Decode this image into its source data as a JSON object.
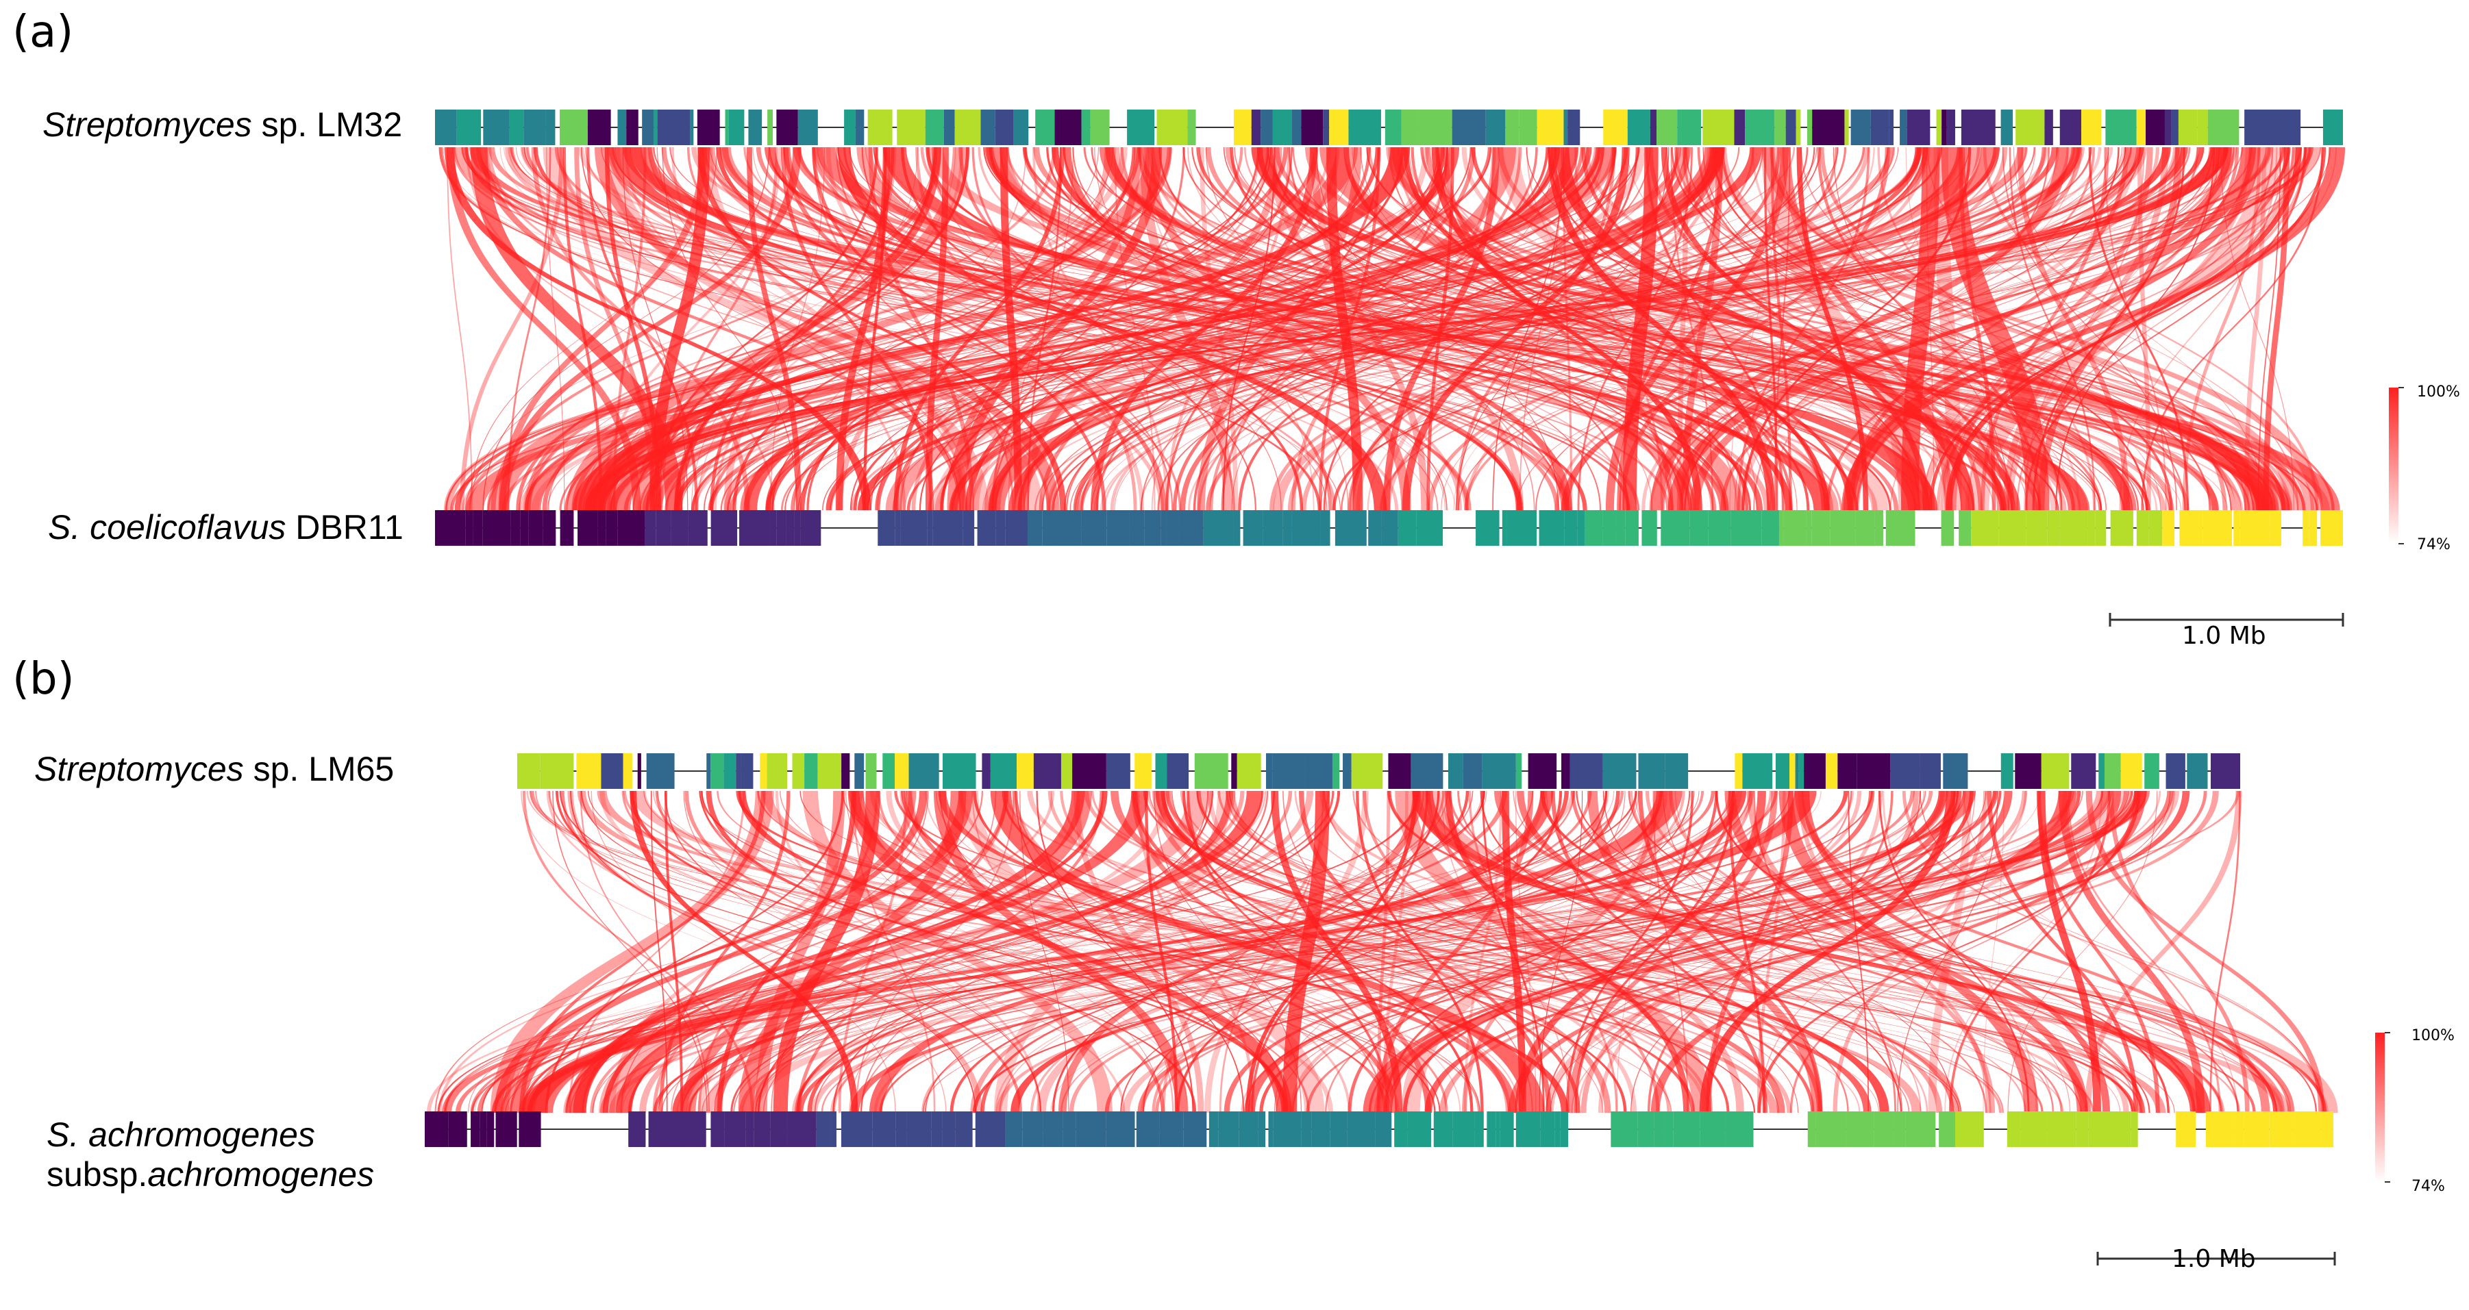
{
  "panels": [
    {
      "label": "(a)",
      "genome_top": {
        "italic": "Streptomyces",
        "rest": " sp. LM32"
      },
      "genome_bottom": {
        "italic": "S. coelicoflavus",
        "rest": " DBR11"
      },
      "legend_max": "100%",
      "legend_min": "74%",
      "scale_label": "1.0 Mb"
    },
    {
      "label": "(b)",
      "genome_top": {
        "italic": "Streptomyces",
        "rest": " sp. LM65"
      },
      "genome_bottom_line1": {
        "italic": "S. achromogenes"
      },
      "genome_bottom_line2": {
        "prefix": "subsp.",
        "italic": "achromogenes"
      },
      "legend_max": "100%",
      "legend_min": "74%",
      "scale_label": "1.0 Mb"
    }
  ],
  "colors": {
    "link": "#ff2020",
    "legend_top": "#ff2020",
    "legend_bottom": "#ffffff",
    "palette": [
      "#440154",
      "#482878",
      "#3e4989",
      "#31688e",
      "#26828e",
      "#1f9e89",
      "#35b779",
      "#6ece58",
      "#b5de2b",
      "#fde725"
    ]
  }
}
